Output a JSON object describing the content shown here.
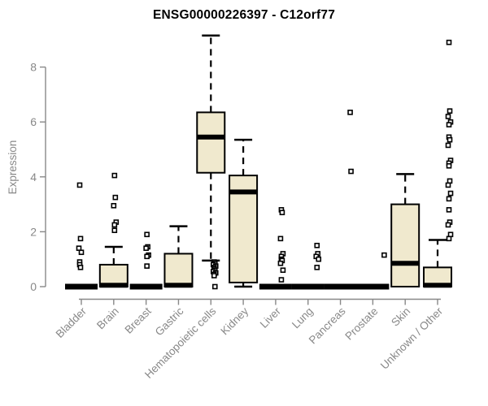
{
  "chart_data": {
    "type": "boxplot",
    "title": "ENSG00000226397 - C12orf77",
    "ylabel": "Expression",
    "xlabel": "",
    "yticks": [
      0,
      2,
      4,
      6,
      8
    ],
    "ylim": [
      0,
      9.3
    ],
    "grid": false,
    "categories": [
      "Bladder",
      "Brain",
      "Breast",
      "Gastric",
      "Hematopoietic cells",
      "Kidney",
      "Liver",
      "Lung",
      "Pancreas",
      "Prostate",
      "Skin",
      "Unknown / Other"
    ],
    "boxes": [
      {
        "category": "Bladder",
        "low": 0,
        "q1": 0,
        "median": 0,
        "q3": 0,
        "high": 0,
        "outliers": [
          3.7,
          1.75,
          1.4,
          1.25,
          0.9,
          0.8,
          0.7
        ]
      },
      {
        "category": "Brain",
        "low": 0,
        "q1": 0,
        "median": 0.05,
        "q3": 0.8,
        "high": 1.45,
        "outliers": [
          4.05,
          3.25,
          2.95,
          2.35,
          2.25,
          2.05
        ]
      },
      {
        "category": "Breast",
        "low": 0,
        "q1": 0,
        "median": 0,
        "q3": 0,
        "high": 0,
        "outliers": [
          1.9,
          1.45,
          1.4,
          1.15,
          1.1,
          0.75
        ]
      },
      {
        "category": "Gastric",
        "low": 0,
        "q1": 0,
        "median": 0.05,
        "q3": 1.2,
        "high": 2.2,
        "outliers": []
      },
      {
        "category": "Hematopoietic cells",
        "low": 0.95,
        "q1": 4.15,
        "median": 5.45,
        "q3": 6.35,
        "high": 9.15,
        "outliers": [
          0.9,
          0.85,
          0.8,
          0.75,
          0.7,
          0.65,
          0.6,
          0.55,
          0.5,
          0.45,
          0.4,
          0
        ]
      },
      {
        "category": "Kidney",
        "low": 0,
        "q1": 0.15,
        "median": 3.45,
        "q3": 4.05,
        "high": 5.35,
        "outliers": []
      },
      {
        "category": "Liver",
        "low": 0,
        "q1": 0,
        "median": 0,
        "q3": 0,
        "high": 0,
        "outliers": [
          2.8,
          2.7,
          1.75,
          1.2,
          1.1,
          1.0,
          0.95,
          0.85,
          0.6,
          0.25
        ]
      },
      {
        "category": "Lung",
        "low": 0,
        "q1": 0,
        "median": 0,
        "q3": 0,
        "high": 0,
        "outliers": [
          1.5,
          1.2,
          1.1,
          1.0,
          0.7
        ]
      },
      {
        "category": "Pancreas",
        "low": 0,
        "q1": 0,
        "median": 0,
        "q3": 0,
        "high": 0,
        "outliers": [
          6.35,
          4.2
        ]
      },
      {
        "category": "Prostate",
        "low": 0,
        "q1": 0,
        "median": 0,
        "q3": 0,
        "high": 0,
        "outliers": [
          1.15
        ]
      },
      {
        "category": "Skin",
        "low": 0,
        "q1": 0,
        "median": 0.85,
        "q3": 3.0,
        "high": 4.1,
        "outliers": []
      },
      {
        "category": "Unknown / Other",
        "low": 0,
        "q1": 0,
        "median": 0.05,
        "q3": 0.7,
        "high": 1.7,
        "outliers": [
          8.9,
          6.4,
          6.2,
          6.0,
          5.9,
          5.45,
          5.35,
          5.15,
          4.6,
          4.5,
          4.4,
          3.85,
          3.7,
          3.4,
          3.2,
          2.8,
          2.35,
          2.25,
          1.9,
          1.75
        ]
      }
    ],
    "colors": {
      "box_fill": "#f0e9ce",
      "box_border": "#000000",
      "median": "#000000",
      "outlier_stroke": "#000000",
      "outlier_fill": "#ffffff",
      "axis": "#888888",
      "tick_label": "#888888",
      "title": "#000000",
      "background": "#ffffff"
    }
  }
}
